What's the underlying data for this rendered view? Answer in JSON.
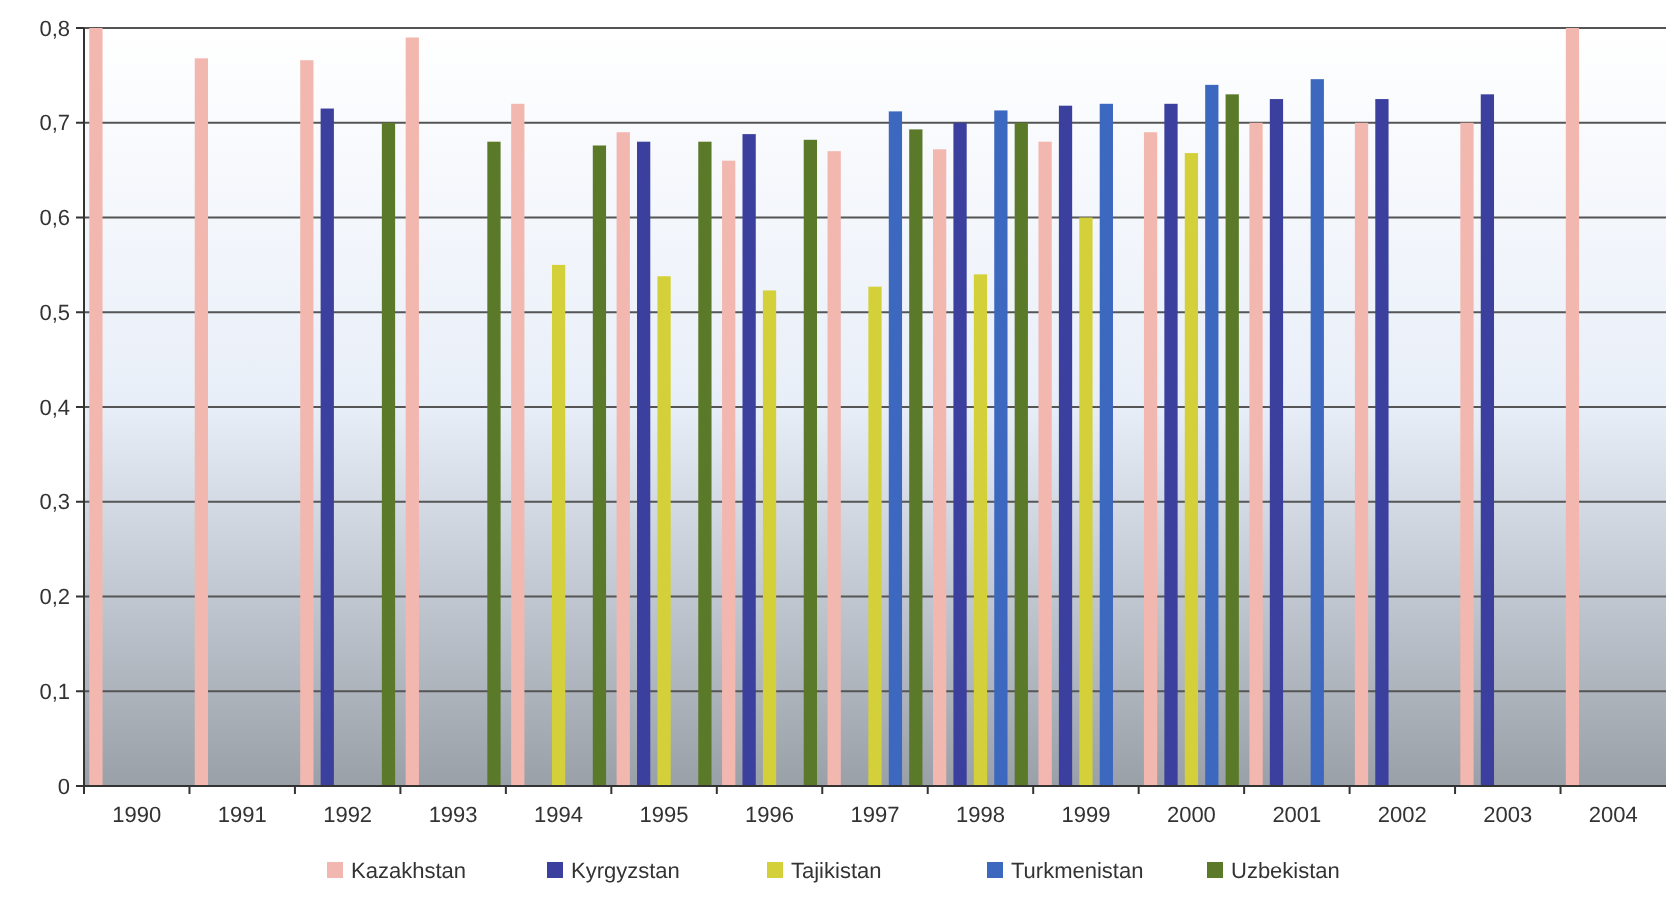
{
  "chart_data": {
    "type": "bar",
    "categories": [
      "1990",
      "1991",
      "1992",
      "1993",
      "1994",
      "1995",
      "1996",
      "1997",
      "1998",
      "1999",
      "2000",
      "2001",
      "2002",
      "2003",
      "2004"
    ],
    "series": [
      {
        "name": "Kazakhstan",
        "color": "#f2b8b0",
        "values": [
          0.8,
          0.768,
          0.766,
          0.79,
          0.72,
          0.69,
          0.66,
          0.67,
          0.672,
          0.68,
          0.69,
          0.7,
          0.7,
          0.7,
          0.8
        ]
      },
      {
        "name": "Kyrgyzstan",
        "color": "#3b3f9e",
        "values": [
          null,
          null,
          0.715,
          null,
          null,
          0.68,
          0.688,
          null,
          0.7,
          0.718,
          0.72,
          0.725,
          0.725,
          0.73,
          null
        ]
      },
      {
        "name": "Tajikistan",
        "color": "#d4d03a",
        "values": [
          null,
          null,
          null,
          null,
          0.55,
          0.538,
          0.523,
          0.527,
          0.54,
          0.6,
          0.668,
          null,
          null,
          null,
          null
        ]
      },
      {
        "name": "Turkmenistan",
        "color": "#3d68c0",
        "values": [
          null,
          null,
          null,
          null,
          null,
          null,
          null,
          0.712,
          0.713,
          0.72,
          0.74,
          0.746,
          null,
          null,
          null
        ]
      },
      {
        "name": "Uzbekistan",
        "color": "#5a7a2a",
        "values": [
          null,
          null,
          0.7,
          0.68,
          0.676,
          0.68,
          0.682,
          0.693,
          0.7,
          null,
          0.73,
          null,
          null,
          null,
          null
        ]
      }
    ],
    "ylim": [
      0,
      0.8
    ],
    "yticks": [
      0,
      {
        "value": 0.1,
        "label": "0,1"
      },
      {
        "value": 0.2,
        "label": "0,2"
      },
      {
        "value": 0.3,
        "label": "0,3"
      },
      {
        "value": 0.4,
        "label": "0,4"
      },
      {
        "value": 0.5,
        "label": "0,5"
      },
      {
        "value": 0.6,
        "label": "0,6"
      },
      {
        "value": 0.7,
        "label": "0,7"
      },
      {
        "value": 0.8,
        "label": "0,8"
      }
    ],
    "grid": "y",
    "legend": "bottom"
  }
}
